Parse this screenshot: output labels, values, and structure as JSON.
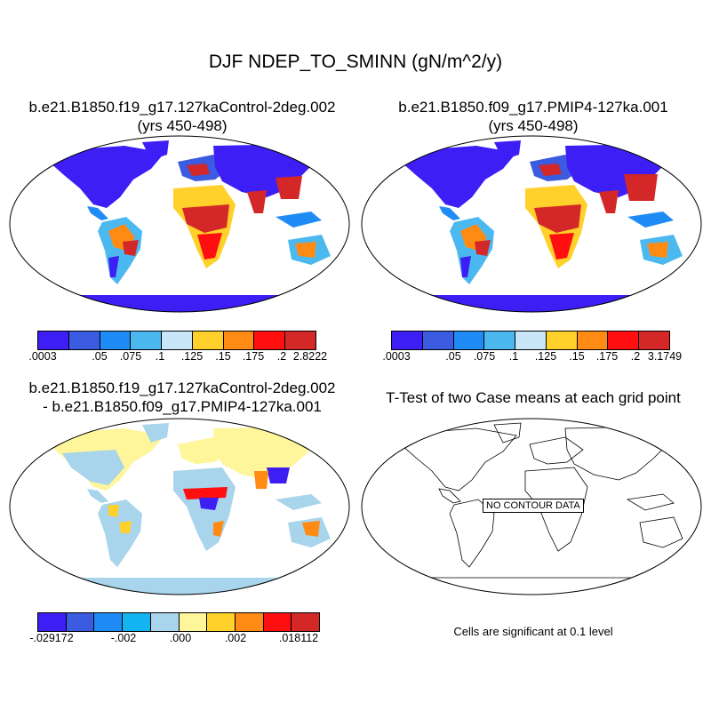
{
  "figure_title": "DJF NDEP_TO_SMINN (gN/m^2/y)",
  "panels": {
    "case1": {
      "title_line1": "b.e21.B1850.f19_g17.127kaControl-2deg.002",
      "title_line2": "(yrs 450-498)",
      "colorbar_labels": [
        ".0003",
        ".05",
        ".075",
        ".1",
        ".125",
        ".15",
        ".175",
        ".2",
        "2.8222"
      ],
      "colorbar_colors": [
        "#3d1ff5",
        "#3b5be0",
        "#1f8cf5",
        "#4bb9f0",
        "#c8e6f8",
        "#ffd12a",
        "#ff8a14",
        "#ff0f0f",
        "#d42727"
      ]
    },
    "case2": {
      "title_line1": "b.e21.B1850.f09_g17.PMIP4-127ka.001",
      "title_line2": "(yrs 450-498)",
      "colorbar_labels": [
        ".0003",
        ".05",
        ".075",
        ".1",
        ".125",
        ".15",
        ".175",
        ".2",
        "3.1749"
      ],
      "colorbar_colors": [
        "#3d1ff5",
        "#3b5be0",
        "#1f8cf5",
        "#4bb9f0",
        "#c8e6f8",
        "#ffd12a",
        "#ff8a14",
        "#ff0f0f",
        "#d42727"
      ]
    },
    "diff": {
      "title_line1": "b.e21.B1850.f19_g17.127kaControl-2deg.002",
      "title_line2": "- b.e21.B1850.f09_g17.PMIP4-127ka.001",
      "colorbar_labels": [
        "-.029172",
        "-.002",
        ".000",
        ".002",
        ".018112"
      ],
      "colorbar_colors": [
        "#3d1ff5",
        "#3b5be0",
        "#1f8cf5",
        "#14b4f0",
        "#a8d4ec",
        "#fff59a",
        "#ffd12a",
        "#ff8a14",
        "#ff0f0f",
        "#d42727"
      ]
    },
    "ttest": {
      "title": "T-Test of two Case means at each grid point",
      "no_data_label": "NO CONTOUR DATA",
      "footnote": "Cells are significant at 0.1 level"
    }
  }
}
